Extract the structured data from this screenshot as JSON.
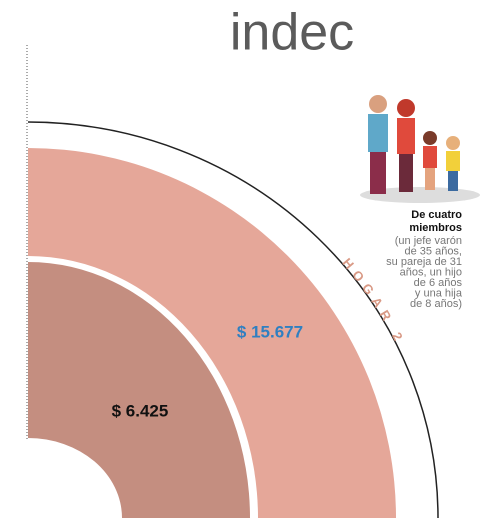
{
  "header": {
    "logo": "indec"
  },
  "household": {
    "label": "HOGAR 2",
    "title_lines": [
      "De cuatro",
      "miembros"
    ],
    "description_lines": [
      "(un jefe varón",
      "de 35 años,",
      "su pareja de 31",
      "años, un hijo",
      "de 6 años",
      "y una hija",
      "de 8 años)"
    ]
  },
  "outer_band": {
    "label": "$ 15.677"
  },
  "inner_band": {
    "label": "$ 6.425"
  }
}
